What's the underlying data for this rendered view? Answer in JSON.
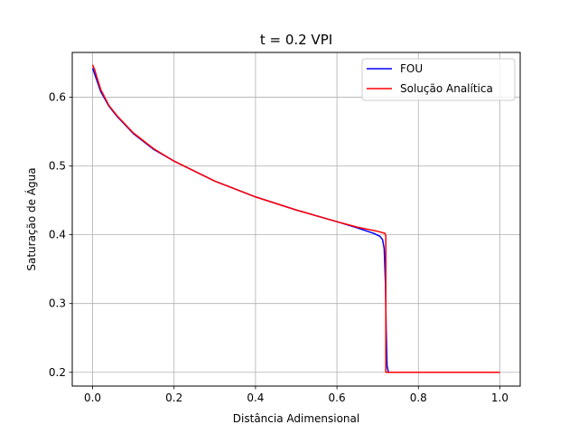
{
  "chart_data": {
    "type": "line",
    "title": "t = 0.2 VPI",
    "xlabel": "Distância Adimensional",
    "ylabel": "Saturação de Água",
    "xlim": [
      -0.05,
      1.05
    ],
    "ylim": [
      0.18,
      0.665
    ],
    "xticks": [
      0.0,
      0.2,
      0.4,
      0.6,
      0.8,
      1.0
    ],
    "xtick_labels": [
      "0.0",
      "0.2",
      "0.4",
      "0.6",
      "0.8",
      "1.0"
    ],
    "yticks": [
      0.2,
      0.3,
      0.4,
      0.5,
      0.6
    ],
    "ytick_labels": [
      "0.2",
      "0.3",
      "0.4",
      "0.5",
      "0.6"
    ],
    "grid": true,
    "legend_position": "top-right",
    "series": [
      {
        "name": "FOU",
        "color": "#0000ff",
        "x": [
          0.0,
          0.01,
          0.02,
          0.04,
          0.06,
          0.1,
          0.15,
          0.2,
          0.3,
          0.4,
          0.5,
          0.6,
          0.65,
          0.69,
          0.705,
          0.712,
          0.716,
          0.719,
          0.721,
          0.723,
          0.726,
          0.73,
          0.75,
          0.8,
          0.9,
          1.0
        ],
        "y": [
          0.642,
          0.625,
          0.608,
          0.587,
          0.572,
          0.547,
          0.524,
          0.507,
          0.478,
          0.455,
          0.436,
          0.419,
          0.41,
          0.402,
          0.398,
          0.393,
          0.38,
          0.33,
          0.26,
          0.21,
          0.201,
          0.2,
          0.2,
          0.2,
          0.2,
          0.2
        ]
      },
      {
        "name": "Solução Analítica",
        "color": "#ff0000",
        "x": [
          0.0,
          0.005,
          0.01,
          0.02,
          0.04,
          0.06,
          0.1,
          0.15,
          0.2,
          0.3,
          0.4,
          0.5,
          0.6,
          0.65,
          0.7,
          0.718,
          0.72,
          0.72,
          0.722,
          0.75,
          0.8,
          0.9,
          1.0
        ],
        "y": [
          0.647,
          0.64,
          0.63,
          0.611,
          0.588,
          0.573,
          0.548,
          0.525,
          0.507,
          0.478,
          0.455,
          0.436,
          0.419,
          0.411,
          0.405,
          0.402,
          0.398,
          0.2,
          0.2,
          0.2,
          0.2,
          0.2,
          0.2
        ]
      }
    ]
  }
}
